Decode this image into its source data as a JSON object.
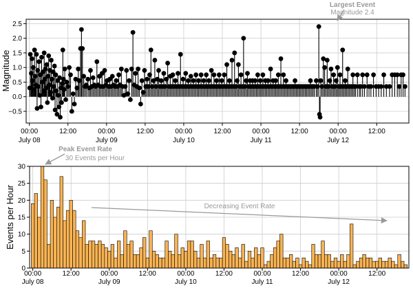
{
  "chart_data": [
    {
      "type": "scatter",
      "style": "stem",
      "ylabel": "Magnitude",
      "ylim": [
        -0.9,
        2.65
      ],
      "yticks": [
        -0.5,
        0.0,
        0.5,
        1.0,
        1.5,
        2.0,
        2.5
      ],
      "ytick_labels": [
        "−0.5",
        "0.0",
        "0.5",
        "1.0",
        "1.5",
        "2.0",
        "2.5"
      ],
      "xlim_hours": [
        -1,
        118
      ],
      "x_time_labels": [
        "00:00",
        "12:00",
        "00:00",
        "12:00",
        "00:00",
        "12:00",
        "00:00",
        "12:00",
        "00:00",
        "12:00"
      ],
      "x_date_labels": [
        "July 08",
        "July 09",
        "July 10",
        "July 11",
        "July 12"
      ],
      "grid": true,
      "colors": {
        "marker": "#000000",
        "stem": "#000000"
      },
      "annotation": {
        "title": "Largest Event",
        "subtitle": "Magnitude 2.4",
        "x_hours": 90.0,
        "y": 2.4
      },
      "events": [
        [
          0.1,
          0.3
        ],
        [
          0.3,
          1.45
        ],
        [
          0.6,
          0.8
        ],
        [
          0.8,
          1.3
        ],
        [
          1.0,
          0.55
        ],
        [
          1.2,
          1.0
        ],
        [
          1.4,
          0.25
        ],
        [
          1.6,
          1.6
        ],
        [
          1.8,
          0.7
        ],
        [
          2.0,
          0.4
        ],
        [
          2.2,
          1.45
        ],
        [
          2.4,
          -0.4
        ],
        [
          2.6,
          0.9
        ],
        [
          2.8,
          0.35
        ],
        [
          3.0,
          1.2
        ],
        [
          3.2,
          0.05
        ],
        [
          3.4,
          0.75
        ],
        [
          3.6,
          -0.35
        ],
        [
          3.8,
          1.35
        ],
        [
          4.0,
          0.5
        ],
        [
          4.2,
          0.85
        ],
        [
          4.4,
          0.2
        ],
        [
          4.6,
          1.5
        ],
        [
          4.8,
          0.6
        ],
        [
          5.0,
          0.95
        ],
        [
          5.2,
          0.3
        ],
        [
          5.4,
          1.1
        ],
        [
          5.6,
          -0.2
        ],
        [
          5.8,
          0.7
        ],
        [
          6.0,
          1.4
        ],
        [
          6.2,
          0.4
        ],
        [
          6.4,
          0.9
        ],
        [
          6.6,
          0.15
        ],
        [
          6.8,
          1.25
        ],
        [
          7.0,
          0.6
        ],
        [
          7.2,
          -0.05
        ],
        [
          7.4,
          0.85
        ],
        [
          7.6,
          0.35
        ],
        [
          7.8,
          1.05
        ],
        [
          8.0,
          -0.45
        ],
        [
          8.2,
          0.75
        ],
        [
          8.4,
          0.2
        ],
        [
          8.6,
          -0.6
        ],
        [
          8.8,
          0.55
        ],
        [
          9.0,
          0.05
        ],
        [
          9.2,
          -0.35
        ],
        [
          9.4,
          0.65
        ],
        [
          9.6,
          -0.7
        ],
        [
          9.8,
          0.3
        ],
        [
          10.0,
          -0.2
        ],
        [
          10.2,
          0.45
        ],
        [
          10.4,
          1.6
        ],
        [
          10.6,
          0.6
        ],
        [
          10.8,
          0.25
        ],
        [
          11.0,
          0.95
        ],
        [
          11.3,
          -0.1
        ],
        [
          11.6,
          0.5
        ],
        [
          12.0,
          0.35
        ],
        [
          12.4,
          1.0
        ],
        [
          12.8,
          0.75
        ],
        [
          13.2,
          -0.5
        ],
        [
          13.6,
          0.1
        ],
        [
          14.0,
          -0.25
        ],
        [
          14.4,
          0.6
        ],
        [
          14.8,
          0.3
        ],
        [
          15.2,
          0.95
        ],
        [
          15.5,
          0.55
        ],
        [
          15.9,
          1.65
        ],
        [
          16.2,
          2.3
        ],
        [
          16.5,
          1.65
        ],
        [
          16.9,
          0.7
        ],
        [
          17.3,
          0.35
        ],
        [
          17.7,
          0.4
        ],
        [
          18.2,
          0.6
        ],
        [
          18.6,
          0.3
        ],
        [
          19.0,
          0.9
        ],
        [
          19.4,
          0.35
        ],
        [
          19.8,
          0.65
        ],
        [
          20.2,
          0.4
        ],
        [
          20.6,
          0.35
        ],
        [
          21.0,
          1.2
        ],
        [
          21.4,
          0.4
        ],
        [
          21.8,
          0.7
        ],
        [
          22.2,
          0.35
        ],
        [
          22.6,
          0.8
        ],
        [
          23.0,
          0.35
        ],
        [
          23.4,
          0.9
        ],
        [
          23.8,
          0.4
        ],
        [
          24.2,
          0.55
        ],
        [
          24.6,
          0.35
        ],
        [
          25.0,
          0.6
        ],
        [
          25.4,
          0.35
        ],
        [
          25.8,
          0.7
        ],
        [
          26.2,
          0.4
        ],
        [
          26.6,
          0.35
        ],
        [
          27.0,
          0.55
        ],
        [
          27.4,
          0.35
        ],
        [
          27.8,
          0.75
        ],
        [
          28.2,
          0.4
        ],
        [
          28.6,
          0.95
        ],
        [
          29.0,
          0.35
        ],
        [
          29.4,
          0.05
        ],
        [
          29.8,
          0.35
        ],
        [
          30.2,
          0.9
        ],
        [
          30.6,
          0.1
        ],
        [
          31.0,
          0.55
        ],
        [
          31.4,
          -0.1
        ],
        [
          31.8,
          0.95
        ],
        [
          32.2,
          2.2
        ],
        [
          32.6,
          0.4
        ],
        [
          33.0,
          0.8
        ],
        [
          33.4,
          0.35
        ],
        [
          33.8,
          0.95
        ],
        [
          34.2,
          0.3
        ],
        [
          34.6,
          -0.25
        ],
        [
          35.0,
          0.55
        ],
        [
          35.4,
          0.15
        ],
        [
          35.8,
          0.9
        ],
        [
          36.2,
          0.35
        ],
        [
          36.6,
          0.6
        ],
        [
          37.0,
          0.35
        ],
        [
          37.4,
          0.75
        ],
        [
          37.8,
          1.6
        ],
        [
          38.2,
          0.35
        ],
        [
          38.6,
          0.55
        ],
        [
          39.0,
          1.25
        ],
        [
          39.4,
          0.35
        ],
        [
          39.8,
          0.6
        ],
        [
          40.2,
          0.9
        ],
        [
          40.6,
          0.35
        ],
        [
          41.0,
          0.55
        ],
        [
          41.4,
          0.35
        ],
        [
          41.8,
          0.8
        ],
        [
          42.2,
          0.35
        ],
        [
          42.6,
          0.6
        ],
        [
          43.0,
          1.15
        ],
        [
          43.4,
          0.35
        ],
        [
          43.8,
          0.7
        ],
        [
          44.2,
          0.35
        ],
        [
          44.6,
          0.75
        ],
        [
          45.0,
          0.35
        ],
        [
          45.4,
          0.55
        ],
        [
          45.8,
          0.35
        ],
        [
          46.2,
          0.8
        ],
        [
          46.6,
          0.35
        ],
        [
          47.0,
          1.45
        ],
        [
          47.4,
          0.35
        ],
        [
          47.8,
          0.6
        ],
        [
          48.2,
          0.35
        ],
        [
          48.6,
          0.8
        ],
        [
          49.0,
          0.35
        ],
        [
          49.4,
          0.55
        ],
        [
          49.8,
          0.35
        ],
        [
          50.2,
          0.7
        ],
        [
          50.6,
          0.35
        ],
        [
          51.0,
          0.55
        ],
        [
          51.4,
          0.35
        ],
        [
          51.8,
          0.75
        ],
        [
          52.2,
          0.35
        ],
        [
          52.6,
          0.55
        ],
        [
          53.0,
          0.35
        ],
        [
          53.4,
          0.75
        ],
        [
          53.8,
          0.35
        ],
        [
          54.2,
          0.55
        ],
        [
          54.6,
          0.35
        ],
        [
          55.0,
          0.75
        ],
        [
          55.4,
          0.35
        ],
        [
          55.8,
          0.55
        ],
        [
          56.2,
          0.35
        ],
        [
          56.6,
          0.9
        ],
        [
          57.0,
          0.35
        ],
        [
          57.4,
          0.75
        ],
        [
          57.8,
          0.35
        ],
        [
          58.2,
          0.55
        ],
        [
          58.6,
          0.35
        ],
        [
          59.0,
          0.75
        ],
        [
          59.4,
          0.35
        ],
        [
          59.8,
          0.55
        ],
        [
          60.2,
          0.35
        ],
        [
          60.6,
          0.75
        ],
        [
          61.0,
          0.35
        ],
        [
          61.4,
          1.1
        ],
        [
          61.8,
          0.35
        ],
        [
          62.2,
          0.55
        ],
        [
          62.6,
          0.35
        ],
        [
          63.0,
          1.25
        ],
        [
          63.4,
          0.35
        ],
        [
          63.8,
          1.5
        ],
        [
          64.2,
          0.35
        ],
        [
          64.6,
          0.55
        ],
        [
          65.0,
          1.1
        ],
        [
          65.4,
          0.35
        ],
        [
          65.8,
          0.75
        ],
        [
          66.2,
          0.35
        ],
        [
          66.6,
          2.0
        ],
        [
          67.0,
          0.35
        ],
        [
          67.4,
          0.55
        ],
        [
          67.8,
          0.8
        ],
        [
          68.2,
          0.35
        ],
        [
          68.6,
          0.55
        ],
        [
          69.0,
          0.35
        ],
        [
          69.4,
          0.55
        ],
        [
          69.8,
          0.35
        ],
        [
          70.2,
          0.55
        ],
        [
          70.6,
          0.35
        ],
        [
          71.0,
          0.75
        ],
        [
          71.4,
          0.35
        ],
        [
          71.8,
          0.55
        ],
        [
          72.2,
          0.35
        ],
        [
          72.6,
          0.75
        ],
        [
          73.0,
          0.35
        ],
        [
          73.4,
          0.55
        ],
        [
          73.8,
          0.35
        ],
        [
          74.2,
          0.55
        ],
        [
          74.6,
          0.35
        ],
        [
          75.0,
          0.95
        ],
        [
          75.4,
          0.35
        ],
        [
          75.8,
          0.55
        ],
        [
          76.2,
          0.35
        ],
        [
          76.6,
          0.55
        ],
        [
          77.0,
          0.35
        ],
        [
          77.4,
          0.75
        ],
        [
          77.8,
          0.35
        ],
        [
          78.2,
          1.3
        ],
        [
          78.6,
          0.35
        ],
        [
          79.0,
          0.75
        ],
        [
          79.4,
          0.35
        ],
        [
          79.8,
          0.55
        ],
        [
          80.2,
          0.35
        ],
        [
          80.6,
          0.35
        ],
        [
          81.0,
          0.35
        ],
        [
          81.4,
          0.35
        ],
        [
          81.8,
          0.35
        ],
        [
          82.2,
          0.35
        ],
        [
          82.6,
          0.55
        ],
        [
          83.0,
          0.35
        ],
        [
          83.4,
          0.35
        ],
        [
          83.8,
          0.35
        ],
        [
          84.2,
          0.35
        ],
        [
          84.6,
          0.35
        ],
        [
          85.0,
          0.35
        ],
        [
          85.4,
          0.35
        ],
        [
          85.8,
          0.35
        ],
        [
          86.2,
          0.35
        ],
        [
          86.6,
          0.35
        ],
        [
          87.0,
          0.35
        ],
        [
          87.4,
          0.55
        ],
        [
          87.8,
          0.35
        ],
        [
          88.2,
          0.35
        ],
        [
          88.6,
          0.35
        ],
        [
          89.2,
          0.55
        ],
        [
          89.6,
          0.35
        ],
        [
          90.0,
          2.4
        ],
        [
          90.2,
          -0.6
        ],
        [
          90.4,
          -0.7
        ],
        [
          90.6,
          0.55
        ],
        [
          91.0,
          0.35
        ],
        [
          91.4,
          1.3
        ],
        [
          91.8,
          1.0
        ],
        [
          92.2,
          0.35
        ],
        [
          92.6,
          1.25
        ],
        [
          93.0,
          0.35
        ],
        [
          93.4,
          0.55
        ],
        [
          93.8,
          0.95
        ],
        [
          94.2,
          0.35
        ],
        [
          94.6,
          0.75
        ],
        [
          95.0,
          0.35
        ],
        [
          95.4,
          0.55
        ],
        [
          95.8,
          1.0
        ],
        [
          96.2,
          0.35
        ],
        [
          96.6,
          0.75
        ],
        [
          97.0,
          0.35
        ],
        [
          97.4,
          1.6
        ],
        [
          97.8,
          0.35
        ],
        [
          98.2,
          0.55
        ],
        [
          98.6,
          0.35
        ],
        [
          99.0,
          0.95
        ],
        [
          99.4,
          0.35
        ],
        [
          99.8,
          0.35
        ],
        [
          100.2,
          0.35
        ],
        [
          100.6,
          0.75
        ],
        [
          101.0,
          0.35
        ],
        [
          101.4,
          0.35
        ],
        [
          102.0,
          0.75
        ],
        [
          102.6,
          0.35
        ],
        [
          103.0,
          0.35
        ],
        [
          103.6,
          0.75
        ],
        [
          104.2,
          0.35
        ],
        [
          105.0,
          0.75
        ],
        [
          105.6,
          0.35
        ],
        [
          106.2,
          0.35
        ],
        [
          107.0,
          0.75
        ],
        [
          107.8,
          0.35
        ],
        [
          108.6,
          0.35
        ],
        [
          109.4,
          0.35
        ],
        [
          110.2,
          0.75
        ],
        [
          111.0,
          0.35
        ],
        [
          112.0,
          0.35
        ],
        [
          112.8,
          0.75
        ],
        [
          113.6,
          0.75
        ],
        [
          114.4,
          0.75
        ],
        [
          115.0,
          0.35
        ],
        [
          115.6,
          0.75
        ],
        [
          116.2,
          0.75
        ],
        [
          116.8,
          0.35
        ]
      ]
    },
    {
      "type": "bar",
      "ylabel": "Events per Hour",
      "ylim": [
        0,
        30
      ],
      "yticks": [
        0,
        5,
        10,
        15,
        20,
        25,
        30
      ],
      "xlim_hours": [
        -1,
        118
      ],
      "x_time_labels": [
        "00:00",
        "12:00",
        "00:00",
        "12:00",
        "00:00",
        "12:00",
        "00:00",
        "12:00",
        "00:00",
        "12:00"
      ],
      "x_date_labels": [
        "July 08",
        "July 09",
        "July 10",
        "July 11",
        "July 12"
      ],
      "grid": true,
      "colors": {
        "bar": "#f9b353",
        "edge": "#000000"
      },
      "annotations": [
        {
          "title": "Peak Event Rate",
          "subtitle": "30 Events per Hour",
          "x_hours": 3.5,
          "y": 30
        },
        {
          "text": "Decreasing Event Rate",
          "from": [
            19,
            18
          ],
          "to": [
            107,
            14
          ]
        }
      ],
      "hours_start": 0,
      "values": [
        19,
        22,
        15,
        30,
        26,
        7,
        20,
        15,
        18,
        27,
        14,
        17,
        20,
        17,
        11,
        9,
        14,
        7,
        8,
        8,
        7,
        8,
        7,
        6,
        5,
        7,
        3,
        8,
        4,
        11,
        7,
        8,
        4,
        4,
        6,
        9,
        3,
        11,
        5,
        4,
        3,
        3,
        8,
        5,
        4,
        10,
        4,
        6,
        5,
        8,
        8,
        5,
        3,
        7,
        3,
        8,
        3,
        4,
        3,
        3,
        9,
        7,
        5,
        4,
        6,
        3,
        7,
        2,
        5,
        3,
        6,
        4,
        6,
        1,
        2,
        4,
        6,
        8,
        10,
        3,
        3,
        4,
        2,
        3,
        1,
        3,
        2,
        1,
        7,
        4,
        4,
        8,
        4,
        4,
        2,
        3,
        2,
        4,
        2,
        4,
        13,
        1,
        2,
        3,
        4,
        3,
        3,
        2,
        2,
        3,
        2,
        2,
        3,
        2,
        1,
        4,
        2,
        1
      ]
    }
  ]
}
